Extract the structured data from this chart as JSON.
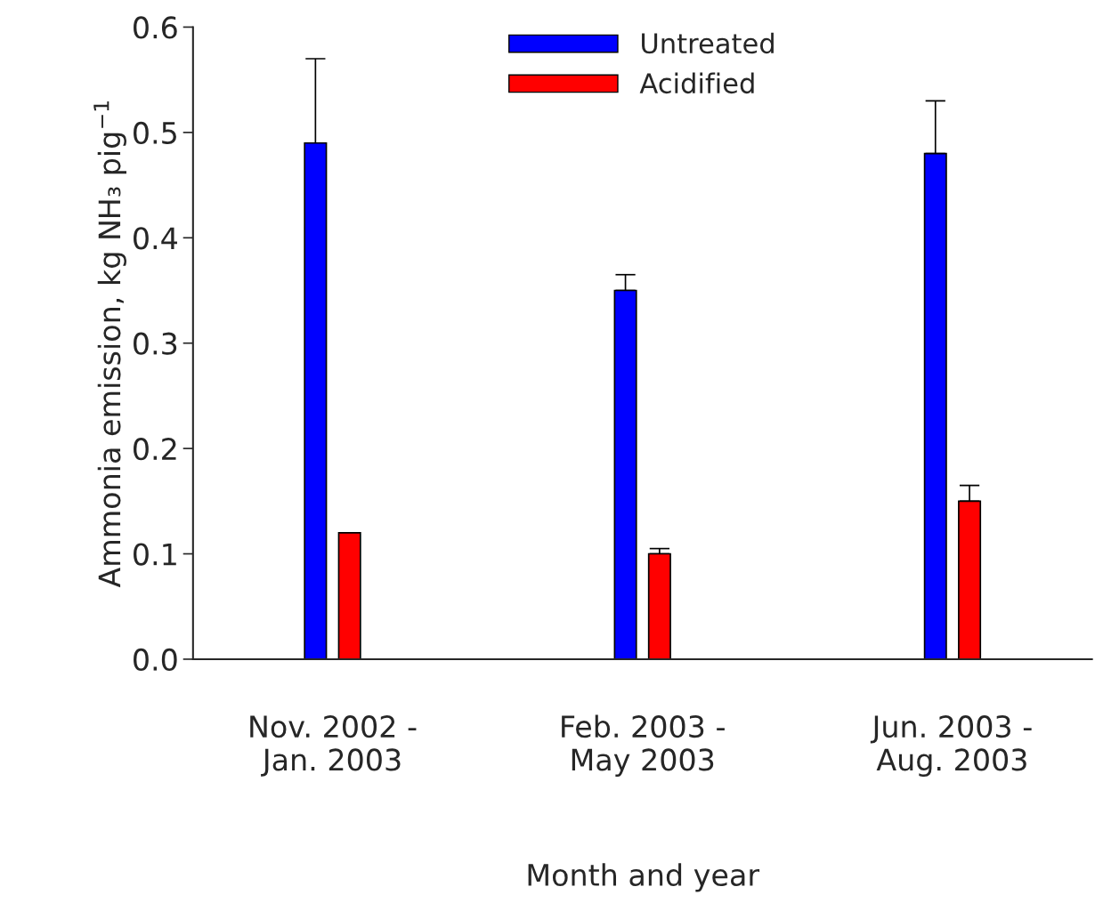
{
  "chart_data": {
    "type": "bar",
    "xlabel": "Month and year",
    "ylabel": "Ammonia emission, kg NH₃ pig$^{−1}$",
    "categories": [
      "Nov. 2002 -\nJan. 2003",
      "Feb. 2003 -\nMay 2003",
      "Jun. 2003 -\nAug. 2003"
    ],
    "series": [
      {
        "name": "Untreated",
        "color": "#0000ff",
        "values": [
          0.49,
          0.35,
          0.48
        ],
        "errors": [
          [
            0.49,
            0.57
          ],
          [
            0.35,
            0.365
          ],
          [
            0.48,
            0.53
          ]
        ]
      },
      {
        "name": "Acidified",
        "color": "#ff0000",
        "values": [
          0.12,
          0.1,
          0.15
        ],
        "errors": [
          null,
          [
            0.1,
            0.105
          ],
          [
            0.15,
            0.165
          ]
        ]
      }
    ],
    "ylim": [
      0,
      0.6
    ],
    "yticks": [
      {
        "value": 0,
        "label": "0.0"
      },
      {
        "value": 0.1,
        "label": "0.1"
      },
      {
        "value": 0.2,
        "label": "0.2"
      },
      {
        "value": 0.3,
        "label": "0.3"
      },
      {
        "value": 0.4,
        "label": "0.4"
      },
      {
        "value": 0.5,
        "label": "0.5"
      },
      {
        "value": 0.6,
        "label": "0.6"
      }
    ],
    "grid": false,
    "legend": "top"
  }
}
